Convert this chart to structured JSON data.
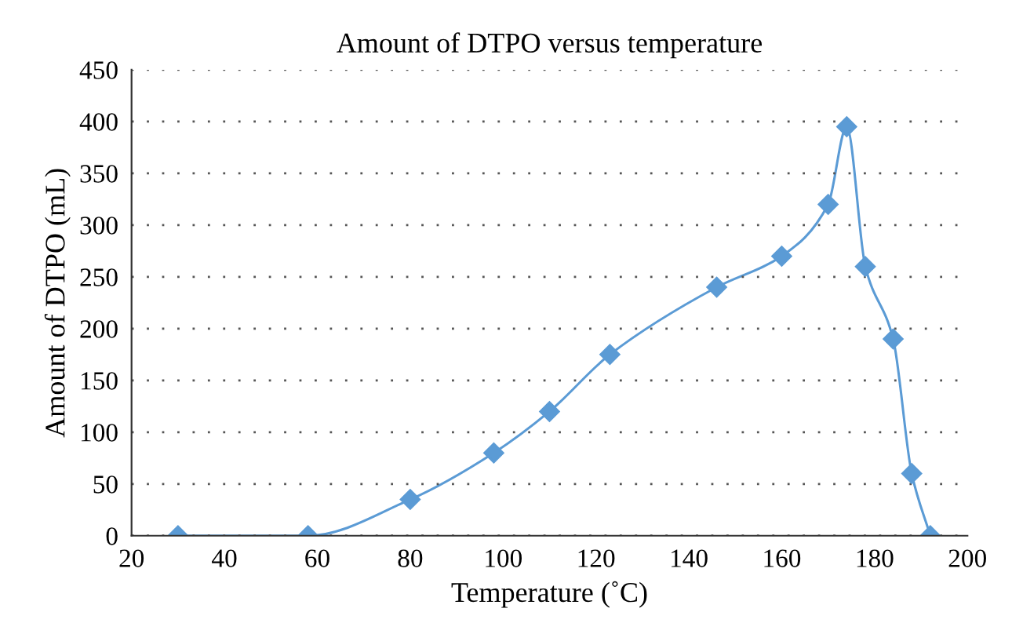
{
  "chart_data": {
    "type": "line",
    "title": "Amount of DTPO versus temperature",
    "xlabel": "Temperature (˚C)",
    "ylabel": "Amount of DTPO (mL)",
    "x": [
      30,
      58,
      80,
      98,
      110,
      123,
      146,
      160,
      170,
      174,
      178,
      184,
      188,
      192
    ],
    "series": [
      {
        "color": "#5b9bd5",
        "values": [
          0,
          0,
          35,
          80,
          120,
          175,
          240,
          270,
          320,
          395,
          260,
          190,
          60,
          0
        ]
      }
    ],
    "xlim": [
      20,
      200
    ],
    "xticks": [
      20,
      40,
      60,
      80,
      100,
      120,
      140,
      160,
      180,
      200
    ],
    "ylim": [
      0,
      450
    ],
    "yticks": [
      0,
      50,
      100,
      150,
      200,
      250,
      300,
      350,
      400,
      450
    ],
    "grid": "y",
    "marker": "diamond",
    "line_style": "solid",
    "legend": false
  }
}
